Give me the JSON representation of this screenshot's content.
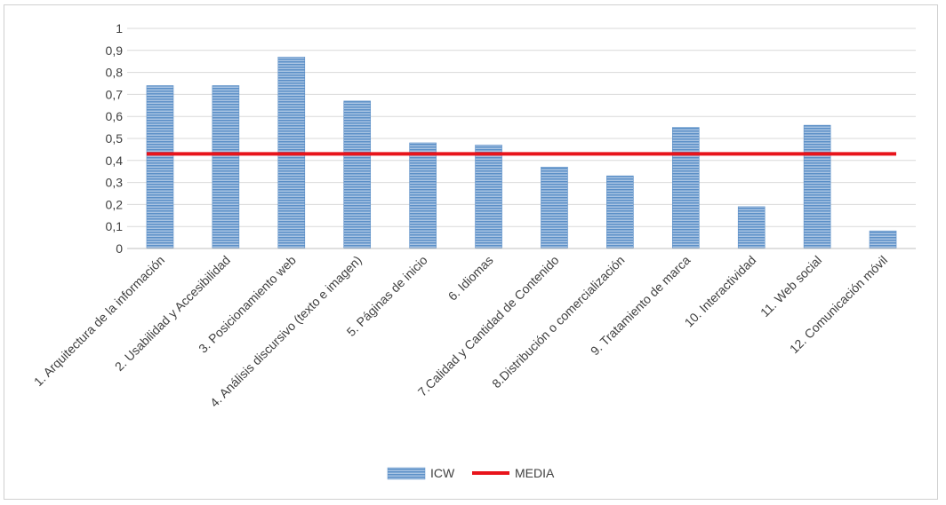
{
  "chart_data": {
    "type": "bar",
    "title": "",
    "xlabel": "",
    "ylabel": "",
    "ylim": [
      0,
      1
    ],
    "yticks": [
      "0",
      "0,1",
      "0,2",
      "0,3",
      "0,4",
      "0,5",
      "0,6",
      "0,7",
      "0,8",
      "0,9",
      "1"
    ],
    "categories": [
      "1. Arquitectura de la información",
      "2. Usabilidad y Accesibilidad",
      "3. Posicionamiento web",
      "4. Análisis discursivo (texto e imagen)",
      "5. Páginas de inicio",
      "6. Idiomas",
      "7.Calidad y Cantidad de Contenido",
      "8.Distribución o comercialización",
      "9. Tratamiento de marca",
      "10. Interactividad",
      "11. Web social",
      "12. Comunicación móvil"
    ],
    "series": [
      {
        "name": "ICW",
        "type": "bar",
        "color": "#5b8fc7",
        "values": [
          0.74,
          0.74,
          0.87,
          0.67,
          0.48,
          0.47,
          0.37,
          0.33,
          0.55,
          0.19,
          0.56,
          0.08
        ]
      },
      {
        "name": "MEDIA",
        "type": "line",
        "color": "#e8141b",
        "values": [
          0.43,
          0.43,
          0.43,
          0.43,
          0.43,
          0.43,
          0.43,
          0.43,
          0.43,
          0.43,
          0.43,
          0.43
        ]
      }
    ],
    "grid": true,
    "legend": "bottom-center"
  }
}
